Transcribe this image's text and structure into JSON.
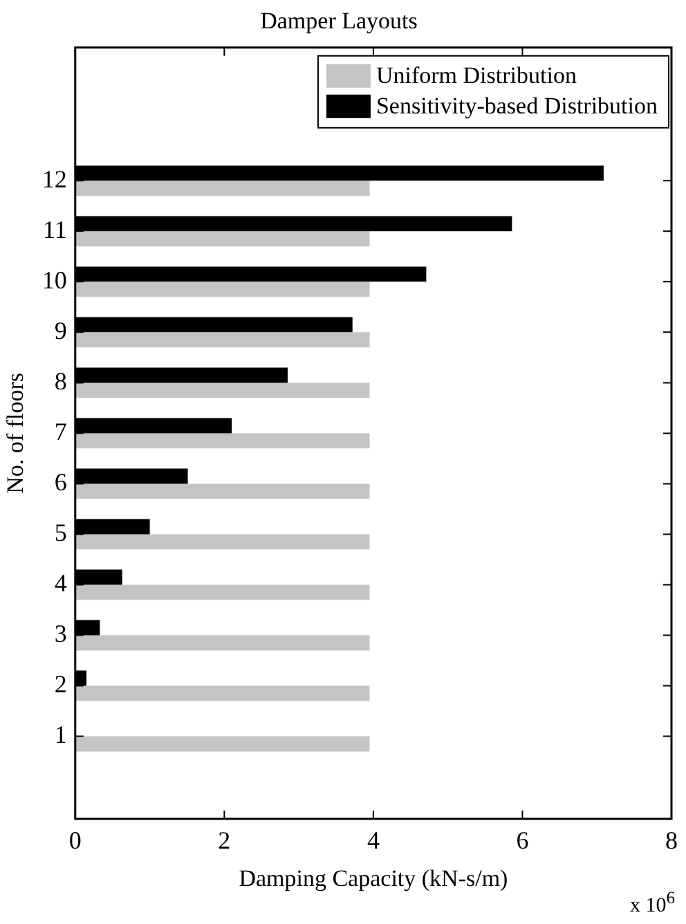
{
  "chart_data": {
    "type": "bar",
    "orientation": "horizontal",
    "title": "Damper Layouts",
    "xlabel": "Damping Capacity (kN-s/m)",
    "ylabel": "No. of floors",
    "categories": [
      "12",
      "11",
      "10",
      "9",
      "8",
      "7",
      "6",
      "5",
      "4",
      "3",
      "2",
      "1"
    ],
    "series": [
      {
        "name": "Uniform Distribution",
        "color": "#c4c4c4",
        "values": [
          3.95,
          3.95,
          3.95,
          3.95,
          3.95,
          3.95,
          3.95,
          3.95,
          3.95,
          3.95,
          3.95,
          3.95
        ]
      },
      {
        "name": "Sensitivity-based Distribution",
        "color": "#000000",
        "values": [
          7.09,
          5.86,
          4.71,
          3.72,
          2.85,
          2.1,
          1.51,
          1.0,
          0.63,
          0.33,
          0.15,
          null
        ]
      }
    ],
    "xlim": [
      0,
      8
    ],
    "xticks": [
      0,
      2,
      4,
      6,
      8
    ],
    "grid": false,
    "legend": "top right",
    "annotations": [
      "x 10$^{6}$"
    ]
  }
}
